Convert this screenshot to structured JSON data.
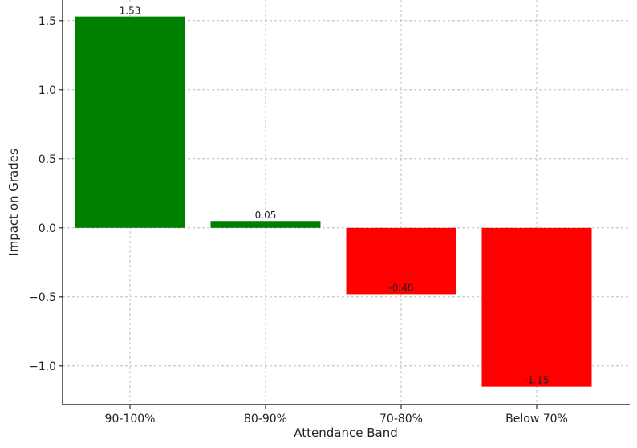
{
  "chart_data": {
    "type": "bar",
    "title": "",
    "xlabel": "Attendance Band",
    "ylabel": "Impact on Grades",
    "categories": [
      "90-100%",
      "80-90%",
      "70-80%",
      "Below 70%"
    ],
    "values": [
      1.53,
      0.05,
      -0.48,
      -1.15
    ],
    "value_labels": [
      "1.53",
      "0.05",
      "-0.48",
      "-1.15"
    ],
    "ylim": [
      -1.28,
      1.65
    ],
    "yticks": [
      -1.0,
      -0.5,
      0.0,
      0.5,
      1.0,
      1.5
    ],
    "ytick_labels": [
      "−1.0",
      "−0.5",
      "0.0",
      "0.5",
      "1.0",
      "1.5"
    ],
    "grid": true,
    "colors": {
      "positive": "#008000",
      "negative": "#ff0000"
    }
  }
}
